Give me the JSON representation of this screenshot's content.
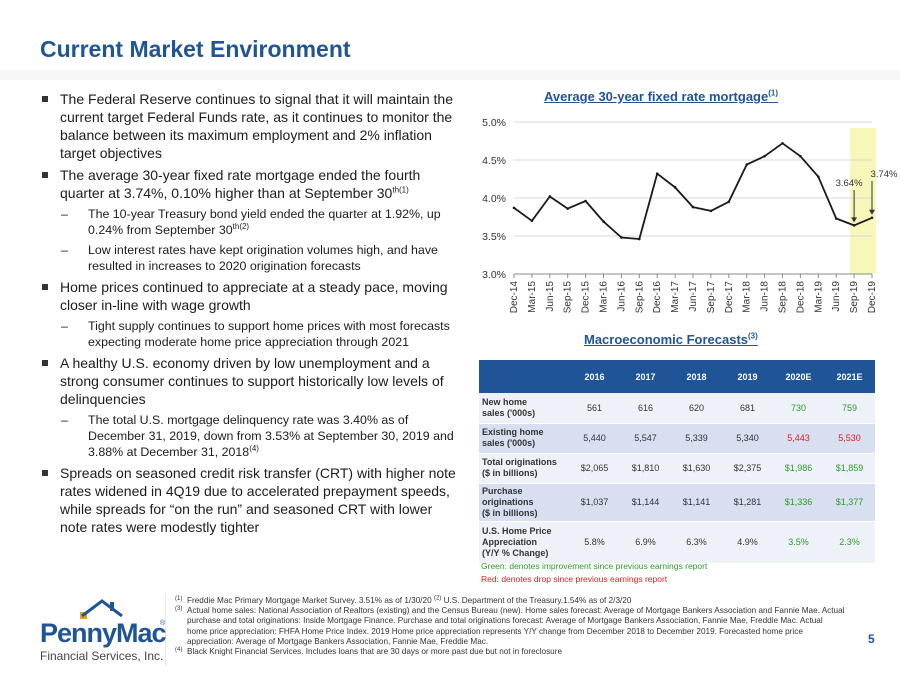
{
  "title": "Current Market Environment",
  "bullets": [
    {
      "level": 1,
      "text": "The Federal Reserve continues to signal that it will maintain the current target Federal Funds rate, as it continues to monitor the balance between its maximum employment and 2% inflation target objectives"
    },
    {
      "level": 1,
      "text": "The average 30-year fixed rate mortgage ended the fourth quarter at 3.74%, 0.10% higher than at September 30",
      "sup": "th(1)"
    },
    {
      "level": 2,
      "text": "The 10-year Treasury bond yield ended the quarter at 1.92%, up 0.24% from September 30",
      "sup": "th(2)"
    },
    {
      "level": 2,
      "text": "Low interest rates have kept origination volumes high, and have resulted in increases to 2020 origination forecasts"
    },
    {
      "level": 1,
      "text": "Home prices continued to appreciate at a steady pace, moving closer in-line with wage growth"
    },
    {
      "level": 2,
      "text": "Tight supply continues to support home prices with most forecasts expecting moderate home price appreciation through 2021"
    },
    {
      "level": 1,
      "text": "A healthy U.S. economy driven by low unemployment and a strong consumer continues to support historically low levels of delinquencies"
    },
    {
      "level": 2,
      "text": "The total U.S. mortgage delinquency rate was 3.40% as of December 31, 2019, down from 3.53% at September 30, 2019 and 3.88% at December 31, 2018",
      "sup": "(4)"
    },
    {
      "level": 1,
      "text": "Spreads on seasoned credit risk transfer (CRT) with higher note rates widened in 4Q19 due to accelerated prepayment speeds, while spreads for “on the run” and seasoned CRT with lower note rates were modestly tighter"
    }
  ],
  "sub_marker": "–",
  "chart_data": {
    "type": "line",
    "title": "Average 30-year fixed rate mortgage",
    "title_sup": "(1)",
    "x": [
      "Dec-14",
      "Mar-15",
      "Jun-15",
      "Sep-15",
      "Dec-15",
      "Mar-16",
      "Jun-16",
      "Sep-16",
      "Dec-16",
      "Mar-17",
      "Jun-17",
      "Sep-17",
      "Dec-17",
      "Mar-18",
      "Jun-18",
      "Sep-18",
      "Dec-18",
      "Mar-19",
      "Jun-19",
      "Sep-19",
      "Dec-19"
    ],
    "y": [
      3.87,
      3.7,
      4.02,
      3.86,
      3.96,
      3.69,
      3.48,
      3.46,
      4.32,
      4.14,
      3.88,
      3.83,
      3.95,
      4.44,
      4.55,
      4.72,
      4.55,
      4.28,
      3.73,
      3.64,
      3.74
    ],
    "yticks": [
      "3.0%",
      "3.5%",
      "4.0%",
      "4.5%",
      "5.0%"
    ],
    "ylim": [
      3.0,
      5.0
    ],
    "highlight_range": [
      "Sep-19",
      "Dec-19"
    ],
    "highlight_color": "#f6f7b8",
    "line_color": "#1a1a1a",
    "annotations": [
      {
        "x": "Sep-19",
        "label": "3.64%"
      },
      {
        "x": "Dec-19",
        "label": "3.74%"
      }
    ],
    "grid": "horizontal"
  },
  "table": {
    "title": "Macroeconomic Forecasts",
    "title_sup": "(3)",
    "headers": [
      "",
      "2016",
      "2017",
      "2018",
      "2019",
      "2020E",
      "2021E"
    ],
    "rows": [
      {
        "label_lines": [
          "New home",
          "sales ('000s)"
        ],
        "cells": [
          "561",
          "616",
          "620",
          "681",
          "730",
          "759"
        ],
        "styles": [
          "",
          "",
          "",
          "",
          "green",
          "green"
        ]
      },
      {
        "label_lines": [
          "Existing home",
          "sales ('000s)"
        ],
        "cells": [
          "5,440",
          "5,547",
          "5,339",
          "5,340",
          "5,443",
          "5,530"
        ],
        "styles": [
          "",
          "",
          "",
          "",
          "red",
          "red"
        ]
      },
      {
        "label_lines": [
          "Total originations",
          "($ in billions)"
        ],
        "cells": [
          "$2,065",
          "$1,810",
          "$1,630",
          "$2,375",
          "$1,986",
          "$1,859"
        ],
        "styles": [
          "",
          "",
          "",
          "",
          "green",
          "green"
        ]
      },
      {
        "label_lines": [
          "Purchase",
          "originations",
          "($ in billions)"
        ],
        "cells": [
          "$1,037",
          "$1,144",
          "$1,141",
          "$1,281",
          "$1,336",
          "$1,377"
        ],
        "styles": [
          "",
          "",
          "",
          "",
          "green",
          "green"
        ]
      },
      {
        "label_lines": [
          "U.S. Home Price",
          "Appreciation",
          "(Y/Y % Change)"
        ],
        "cells": [
          "5.8%",
          "6.9%",
          "6.3%",
          "4.9%",
          "3.5%",
          "2.3%"
        ],
        "styles": [
          "",
          "",
          "",
          "",
          "green",
          "green"
        ]
      }
    ],
    "legend_green": "Green: denotes improvement since previous earnings report",
    "legend_red": "Red: denotes drop since previous earnings report",
    "colors": {
      "header": "#1f5496",
      "green": "#2e9a2e",
      "red": "#e01e1e"
    }
  },
  "footnotes": [
    {
      "mark": "(1)",
      "text": "Freddie Mac Primary Mortgage Market Survey. 3.51% as of 1/30/20",
      "mark2": "(2)",
      "text2": "U.S. Department of the Treasury.1.54% as of 2/3/20"
    },
    {
      "mark": "(3)",
      "text": "Actual home sales: National Association of Realtors (existing) and the Census Bureau (new). Home sales forecast: Average of Mortgage Bankers Association and Fannie Mae. Actual purchase and total originations: Inside Mortgage Finance. Purchase and total originations forecast: Average of Mortgage Bankers Association, Fannie Mae, Freddie Mac. Actual home price appreciation: FHFA Home Price Index. 2019 Home price appreciation represents Y/Y change from December 2018 to December 2019. Forecasted home price appreciation: Average of Mortgage Bankers Association, Fannie Mae, Freddie Mac."
    },
    {
      "mark": "(4)",
      "text": "Black Knight Financial Services. Includes loans that are 30 days or more past due but not in foreclosure"
    }
  ],
  "logo": {
    "word": "PennyMac",
    "reg": "®",
    "sub": "Financial Services, Inc."
  },
  "page_number": "5",
  "accent_color": "#1f5496"
}
